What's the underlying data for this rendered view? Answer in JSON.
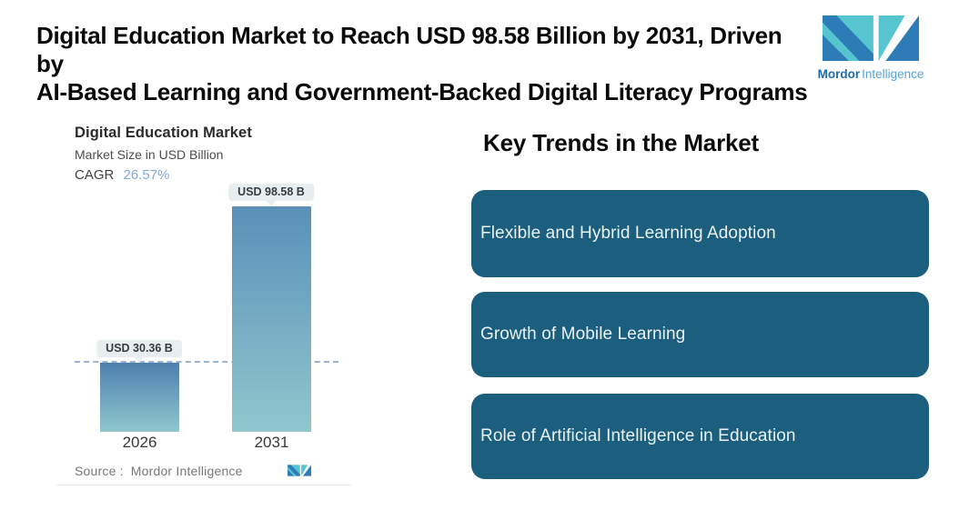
{
  "header": {
    "title_line1": "Digital Education Market to Reach USD 98.58 Billion by 2031, Driven by",
    "title_line2": "AI-Based Learning and Government-Backed Digital Literacy Programs",
    "brand": {
      "name_bold": "Mordor",
      "name_light": "Intelligence"
    }
  },
  "chart": {
    "title": "Digital Education Market",
    "subtitle": "Market Size in USD Billion",
    "cagr_label": "CAGR",
    "cagr_value": "26.57%",
    "source_label": "Source :",
    "source_value": "Mordor Intelligence",
    "bars": [
      {
        "year": "2026",
        "data_label": "USD 30.36 B"
      },
      {
        "year": "2031",
        "data_label": "USD 98.58 B"
      }
    ]
  },
  "chart_data": {
    "type": "bar",
    "title": "Digital Education Market",
    "subtitle": "Market Size in USD Billion",
    "cagr": "26.57%",
    "categories": [
      "2026",
      "2031"
    ],
    "values": [
      30.36,
      98.58
    ],
    "data_labels": [
      "USD 30.36 B",
      "USD 98.58 B"
    ],
    "xlabel": "",
    "ylabel": "Market Size in USD Billion",
    "ylim": [
      0,
      100
    ],
    "grid": false,
    "legend": false,
    "annotations": [
      "horizontal dashed reference line at 2026 value (30.36)"
    ],
    "source": "Mordor Intelligence"
  },
  "trends": {
    "heading": "Key Trends in the Market",
    "items": [
      {
        "label": "Flexible and Hybrid Learning Adoption"
      },
      {
        "label": "Growth of Mobile Learning"
      },
      {
        "label": "Role of Artificial Intelligence in Education"
      }
    ]
  },
  "colors": {
    "card_teal": "#1b5e7d",
    "bar_gradient_top": "#5a90b8",
    "bar_gradient_bottom": "#8fc7ce",
    "logo_dark_blue": "#2e7cb7",
    "logo_teal": "#56c5cf",
    "cagr_value_blue": "#83a8db",
    "tooltip_bg": "#e8eef0",
    "dashed_line": "#9db3d6"
  }
}
